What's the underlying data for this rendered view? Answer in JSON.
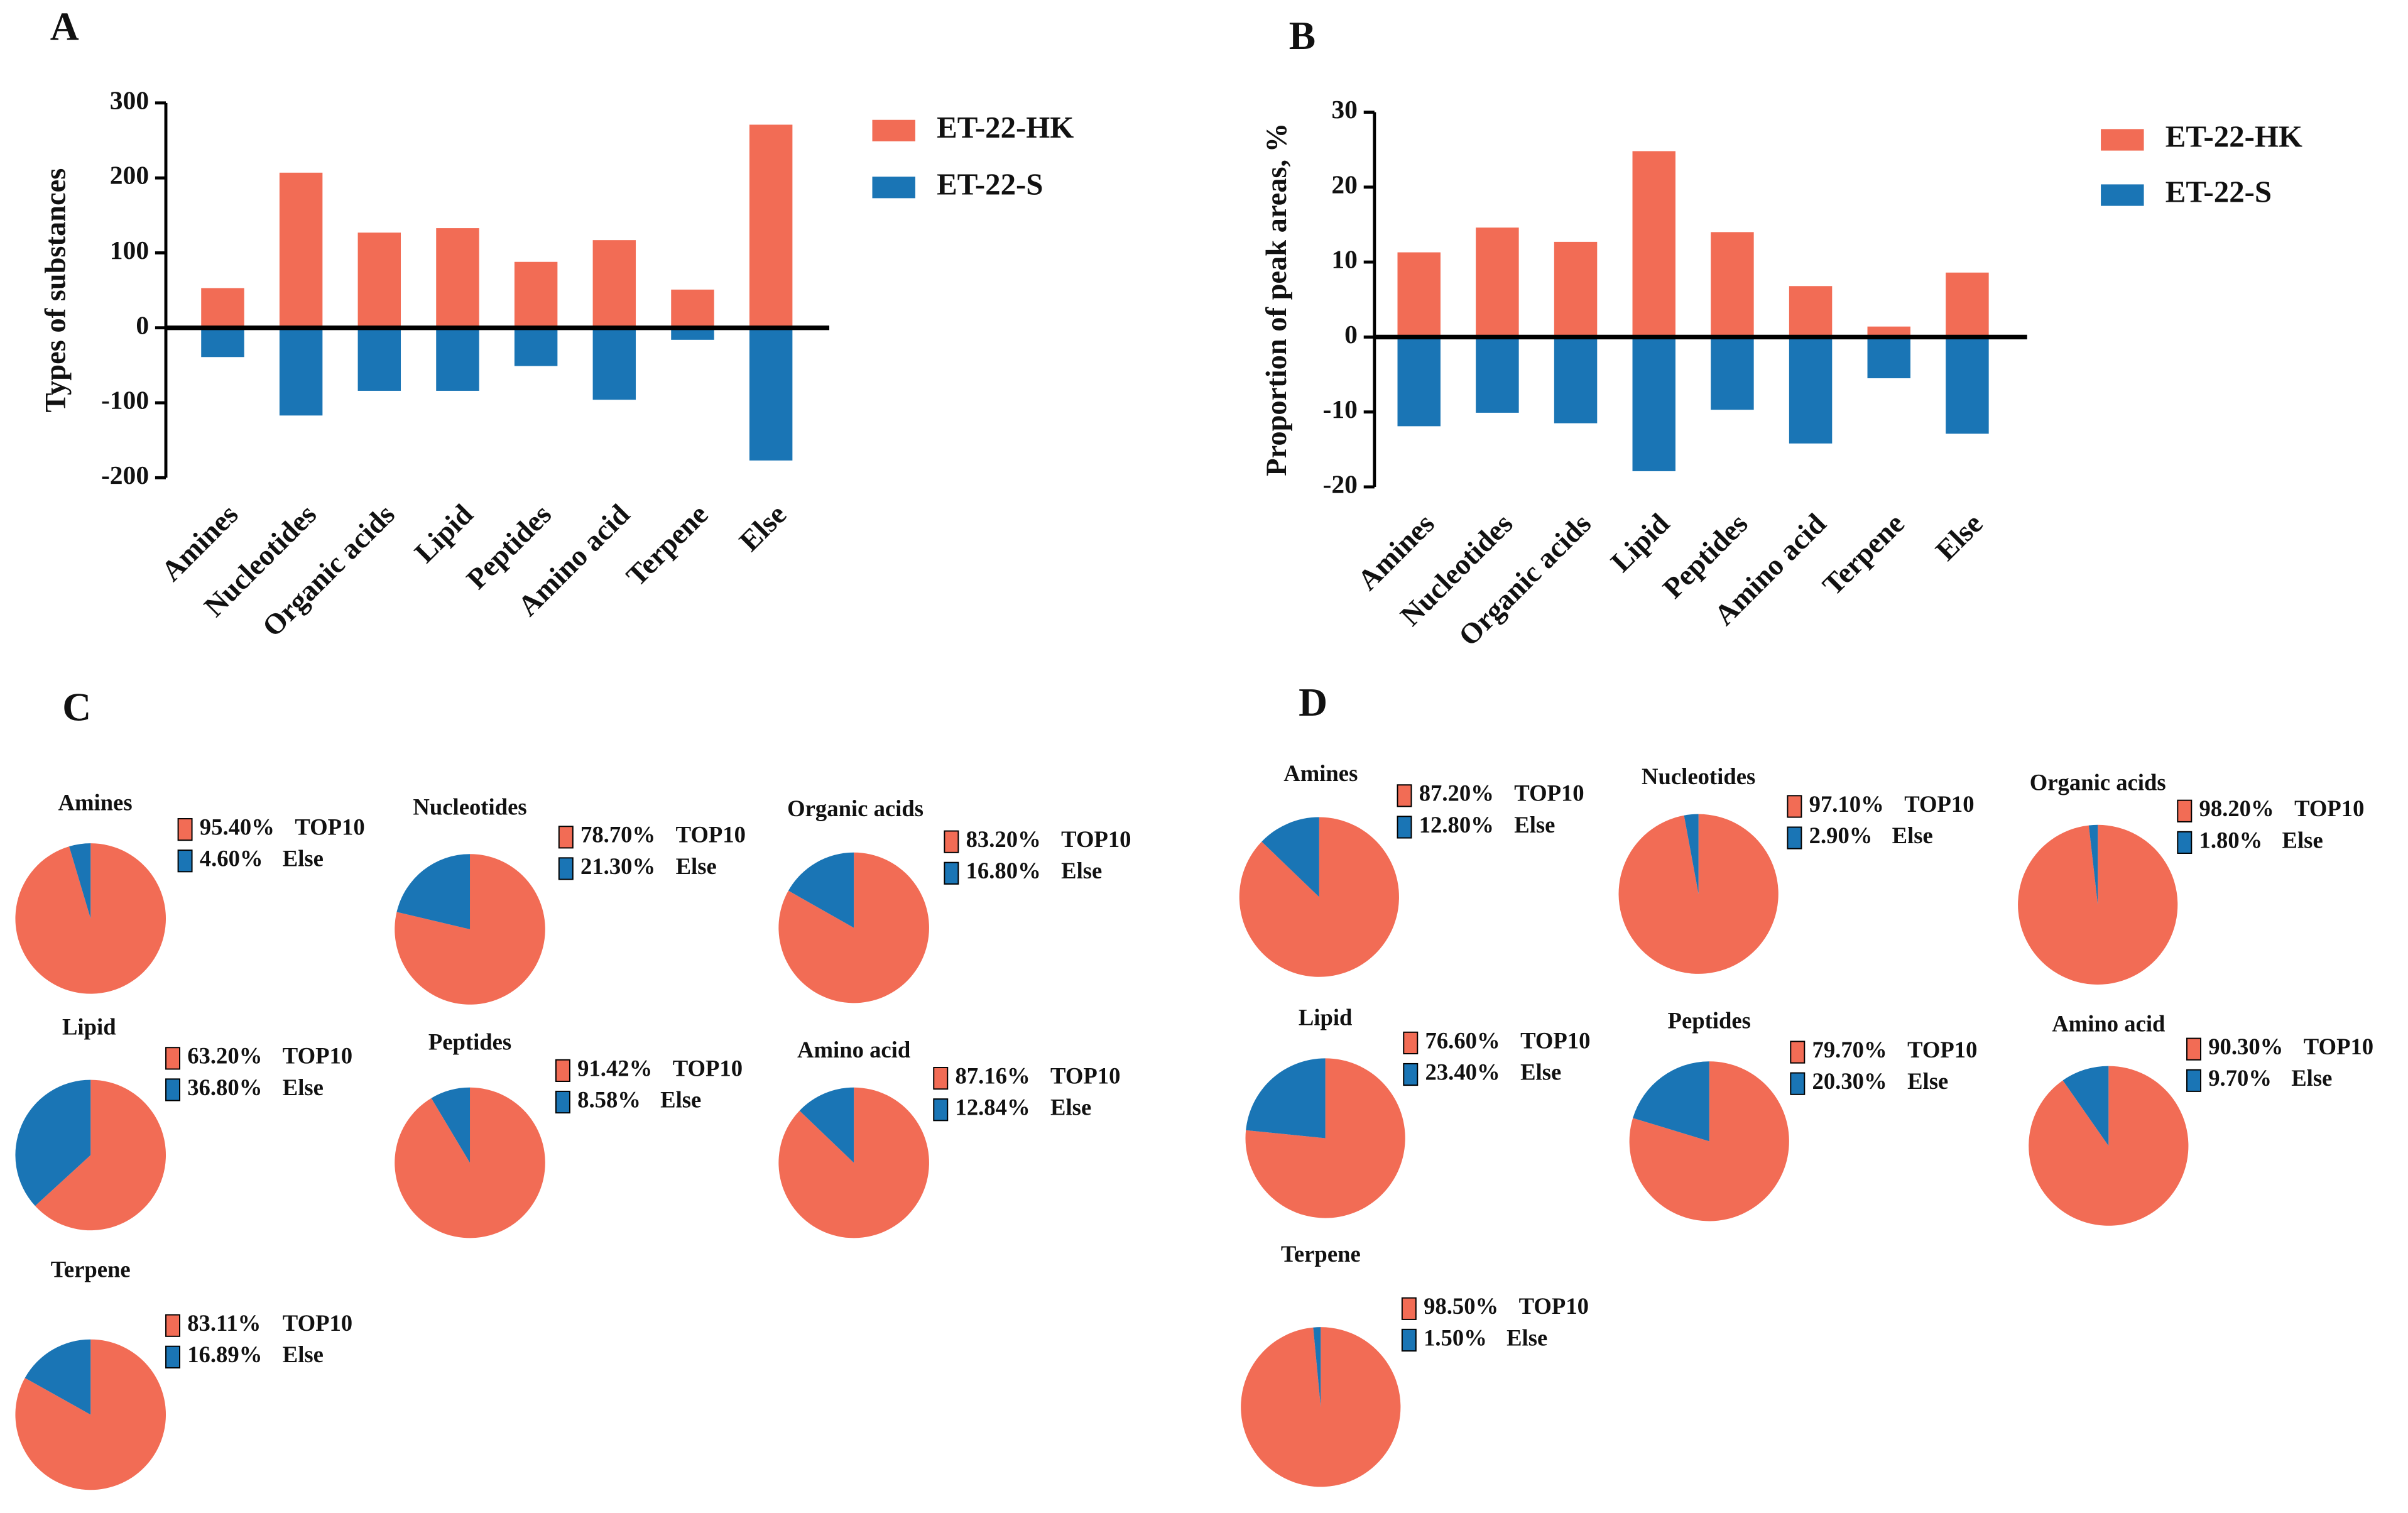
{
  "chart_data": [
    {
      "type": "bar",
      "panel": "A",
      "ylabel": "Types of substances",
      "categories": [
        "Amines",
        "Nucleotides",
        "Organic acids",
        "Lipid",
        "Peptides",
        "Amino acid",
        "Terpene",
        "Else"
      ],
      "series": [
        {
          "name": "ET-22-HK",
          "color": "#f26c55",
          "values": [
            53,
            207,
            127,
            133,
            88,
            117,
            51,
            271
          ]
        },
        {
          "name": "ET-22-S",
          "color": "#1a75b5",
          "values": [
            -39,
            -117,
            -84,
            -84,
            -51,
            -96,
            -16,
            -177
          ]
        }
      ],
      "ylim": [
        -200,
        300
      ],
      "yticks": [
        -200,
        -100,
        0,
        100,
        200,
        300
      ]
    },
    {
      "type": "bar",
      "panel": "B",
      "ylabel": "Proportion of peak areas,  %",
      "categories": [
        "Amines",
        "Nucleotides",
        "Organic acids",
        "Lipid",
        "Peptides",
        "Amino acid",
        "Terpene",
        "Else"
      ],
      "series": [
        {
          "name": "ET-22-HK",
          "color": "#f26c55",
          "values": [
            11.3,
            14.6,
            12.7,
            24.8,
            14.0,
            6.8,
            1.4,
            8.6
          ]
        },
        {
          "name": "ET-22-S",
          "color": "#1a75b5",
          "values": [
            -11.9,
            -10.1,
            -11.5,
            -17.9,
            -9.7,
            -14.2,
            -5.5,
            -12.9
          ]
        }
      ],
      "ylim": [
        -20,
        30
      ],
      "yticks": [
        -20,
        -10,
        0,
        10,
        20,
        30
      ]
    },
    {
      "type": "pie",
      "panel": "C",
      "colors": [
        "#f26c55",
        "#1a75b5"
      ],
      "pies": [
        {
          "title": "Amines",
          "categories": [
            "TOP10",
            "Else"
          ],
          "values": [
            95.4,
            4.6
          ],
          "value_labels": [
            "95.40%",
            "4.60%"
          ]
        },
        {
          "title": "Nucleotides",
          "categories": [
            "TOP10",
            "Else"
          ],
          "values": [
            78.7,
            21.3
          ],
          "value_labels": [
            "78.70%",
            "21.30%"
          ]
        },
        {
          "title": "Organic acids",
          "categories": [
            "TOP10",
            "Else"
          ],
          "values": [
            83.2,
            16.8
          ],
          "value_labels": [
            "83.20%",
            "16.80%"
          ]
        },
        {
          "title": "Lipid",
          "categories": [
            "TOP10",
            "Else"
          ],
          "values": [
            63.2,
            36.8
          ],
          "value_labels": [
            "63.20%",
            "36.80%"
          ]
        },
        {
          "title": "Peptides",
          "categories": [
            "TOP10",
            "Else"
          ],
          "values": [
            91.42,
            8.58
          ],
          "value_labels": [
            "91.42%",
            "8.58%"
          ]
        },
        {
          "title": "Amino acid",
          "categories": [
            "TOP10",
            "Else"
          ],
          "values": [
            87.16,
            12.84
          ],
          "value_labels": [
            "87.16%",
            "12.84%"
          ]
        },
        {
          "title": "Terpene",
          "categories": [
            "TOP10",
            "Else"
          ],
          "values": [
            83.11,
            16.89
          ],
          "value_labels": [
            "83.11%",
            "16.89%"
          ]
        }
      ]
    },
    {
      "type": "pie",
      "panel": "D",
      "colors": [
        "#f26c55",
        "#1a75b5"
      ],
      "pies": [
        {
          "title": "Amines",
          "categories": [
            "TOP10",
            "Else"
          ],
          "values": [
            87.2,
            12.8
          ],
          "value_labels": [
            "87.20%",
            "12.80%"
          ]
        },
        {
          "title": "Nucleotides",
          "categories": [
            "TOP10",
            "Else"
          ],
          "values": [
            97.1,
            2.9
          ],
          "value_labels": [
            "97.10%",
            "2.90%"
          ]
        },
        {
          "title": "Organic acids",
          "categories": [
            "TOP10",
            "Else"
          ],
          "values": [
            98.2,
            1.8
          ],
          "value_labels": [
            "98.20%",
            "1.80%"
          ]
        },
        {
          "title": "Lipid",
          "categories": [
            "TOP10",
            "Else"
          ],
          "values": [
            76.6,
            23.4
          ],
          "value_labels": [
            "76.60%",
            "23.40%"
          ]
        },
        {
          "title": "Peptides",
          "categories": [
            "TOP10",
            "Else"
          ],
          "values": [
            79.7,
            20.3
          ],
          "value_labels": [
            "79.70%",
            "20.30%"
          ]
        },
        {
          "title": "Amino acid",
          "categories": [
            "TOP10",
            "Else"
          ],
          "values": [
            90.3,
            9.7
          ],
          "value_labels": [
            "90.30%",
            "9.70%"
          ]
        },
        {
          "title": "Terpene",
          "categories": [
            "TOP10",
            "Else"
          ],
          "values": [
            98.5,
            1.5
          ],
          "value_labels": [
            "98.50%",
            "1.50%"
          ]
        }
      ]
    }
  ]
}
